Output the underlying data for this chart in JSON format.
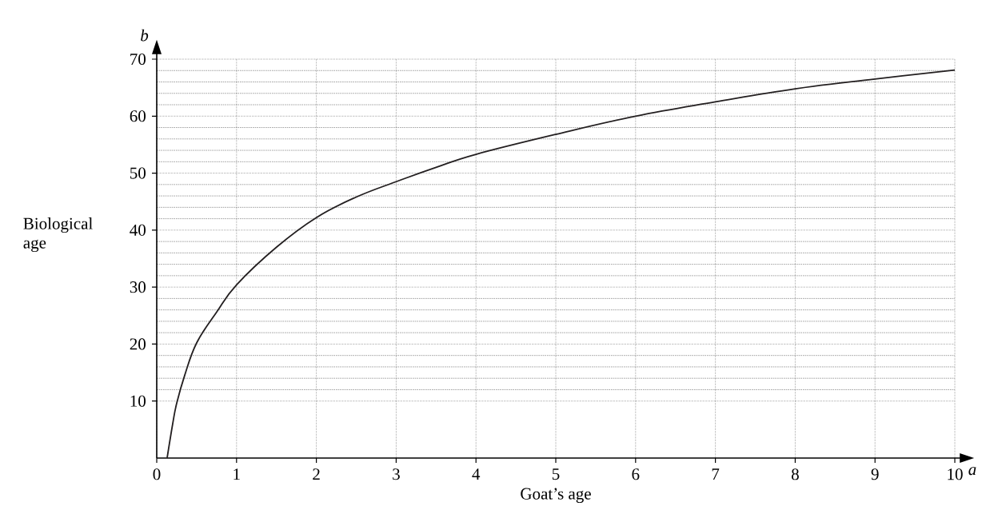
{
  "chart_data": {
    "type": "line",
    "xlabel": "Goat’s age",
    "ylabel": "Biological age",
    "annotations": [
      "a",
      "b"
    ],
    "x": [
      0.13,
      0.2,
      0.25,
      0.35,
      0.5,
      0.75,
      1,
      1.5,
      2,
      2.5,
      3,
      3.5,
      4,
      5,
      6,
      7,
      8,
      9,
      10
    ],
    "values": [
      0,
      6,
      9.6,
      14.5,
      20.2,
      25.6,
      30.4,
      37,
      42.2,
      45.8,
      48.5,
      51,
      53.3,
      56.8,
      60,
      62.5,
      64.8,
      66.5,
      68.1
    ],
    "color": "#231f20",
    "line_style": "solid",
    "marker": "none",
    "grid": true,
    "xlim": [
      0,
      10
    ],
    "ylim": [
      0,
      70
    ],
    "xticks": [
      0,
      1,
      2,
      3,
      4,
      5,
      6,
      7,
      8,
      9,
      10
    ],
    "yticks": [
      10,
      20,
      30,
      40,
      50,
      60,
      70
    ]
  }
}
